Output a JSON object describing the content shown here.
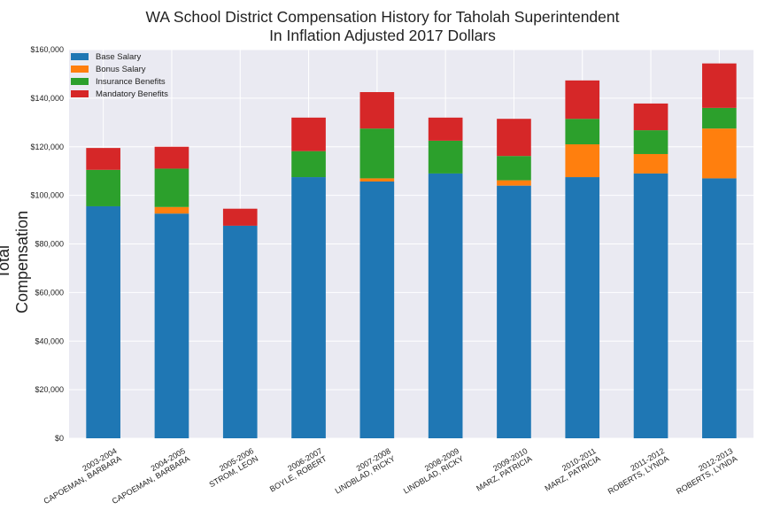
{
  "chart_data": {
    "type": "bar",
    "stacked": true,
    "title": "WA School District Compensation History for Taholah Superintendent",
    "subtitle": "In Inflation Adjusted 2017 Dollars",
    "ylabel": "Total Compensation",
    "xlabel": "",
    "ylim": [
      0,
      160000
    ],
    "yticks": [
      "$0",
      "$20,000",
      "$40,000",
      "$60,000",
      "$80,000",
      "$100,000",
      "$120,000",
      "$140,000",
      "$160,000"
    ],
    "grid": true,
    "legend_position": "top-left",
    "categories": [
      [
        "2003-2004",
        "CAPOEMAN, BARBARA"
      ],
      [
        "2004-2005",
        "CAPOEMAN, BARBARA"
      ],
      [
        "2005-2006",
        "STROM, LEON"
      ],
      [
        "2006-2007",
        "BOYLE, ROBERT"
      ],
      [
        "2007-2008",
        "LINDBLAD, RICKY"
      ],
      [
        "2008-2009",
        "LINDBLAD, RICKY"
      ],
      [
        "2009-2010",
        "MARZ, PATRICIA"
      ],
      [
        "2010-2011",
        "MARZ, PATRICIA"
      ],
      [
        "2011-2012",
        "ROBERTS, LYNDA"
      ],
      [
        "2012-2013",
        "ROBERTS, LYNDA"
      ]
    ],
    "series": [
      {
        "name": "Base Salary",
        "color": "#1f77b4",
        "values": [
          95500,
          92500,
          87500,
          107500,
          105700,
          109000,
          104000,
          107500,
          109000,
          107000
        ]
      },
      {
        "name": "Bonus Salary",
        "color": "#ff7f0e",
        "values": [
          0,
          2700,
          0,
          0,
          1300,
          0,
          2200,
          13500,
          8000,
          20500
        ]
      },
      {
        "name": "Insurance Benefits",
        "color": "#2ca02c",
        "values": [
          15000,
          15800,
          0,
          10700,
          20500,
          13500,
          10000,
          10500,
          9800,
          8500
        ]
      },
      {
        "name": "Mandatory Benefits",
        "color": "#d62728",
        "values": [
          9000,
          9000,
          7000,
          13800,
          15000,
          9500,
          15300,
          15800,
          11000,
          18300
        ]
      }
    ]
  }
}
